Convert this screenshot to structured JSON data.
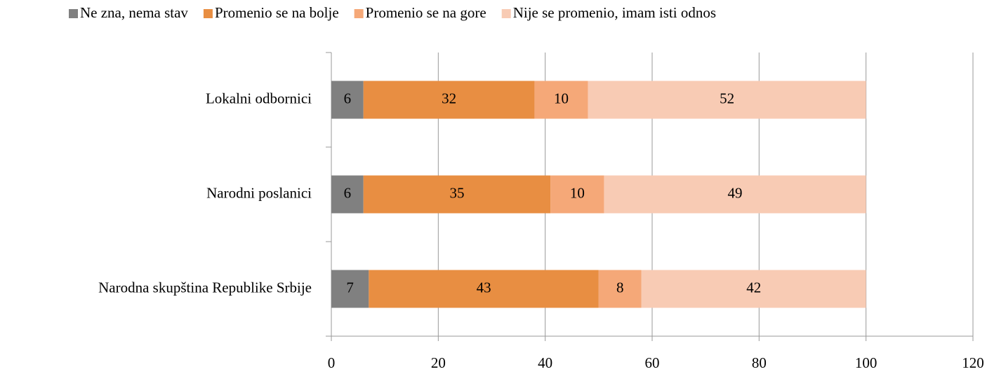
{
  "chart_data": {
    "type": "stacked-bar-horizontal",
    "categories": [
      "Lokalni odbornici",
      "Narodni poslanici",
      "Narodna skupština Republike Srbije"
    ],
    "series": [
      {
        "name": "Ne zna, nema stav",
        "color": "#808080",
        "values": [
          6,
          6,
          7
        ]
      },
      {
        "name": "Promenio se na bolje",
        "color": "#e88e42",
        "values": [
          32,
          35,
          43
        ]
      },
      {
        "name": "Promenio se na gore",
        "color": "#f5a878",
        "values": [
          10,
          10,
          8
        ]
      },
      {
        "name": "Nije se promenio, imam isti odnos",
        "color": "#f8cbb4",
        "values": [
          52,
          49,
          42
        ]
      }
    ],
    "xlim": [
      0,
      120
    ],
    "xticks": [
      0,
      20,
      40,
      60,
      80,
      100,
      120
    ],
    "grid": true,
    "legend": "top"
  }
}
